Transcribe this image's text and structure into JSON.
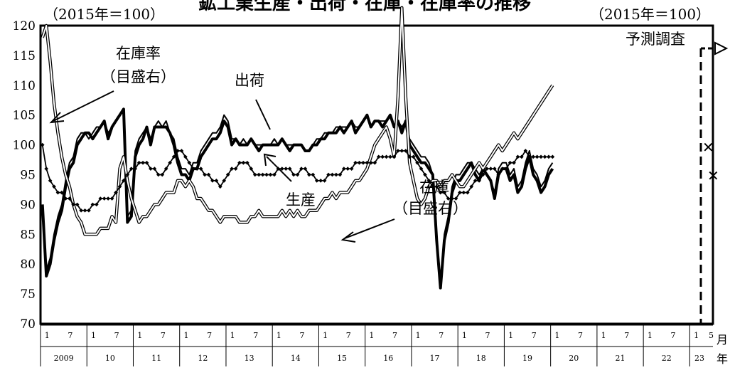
{
  "title": "鉱工業生産・出荷・在庫・在庫率の推移",
  "chart_data": {
    "type": "line",
    "left_unit": "（2015年＝100）",
    "right_unit": "（2015年＝100）",
    "x_unit_month": "月",
    "x_unit_year": "年",
    "ylim_left": [
      70,
      120
    ],
    "yticks_left": [
      "120",
      "115",
      "110",
      "105",
      "100",
      "95",
      "90",
      "85",
      "80",
      "75",
      "70"
    ],
    "ylim_right": [
      80,
      130
    ],
    "start": "2009-01",
    "end": "2023-05",
    "years": [
      "2009",
      "10",
      "11",
      "12",
      "13",
      "14",
      "15",
      "16",
      "17",
      "18",
      "19",
      "20",
      "21",
      "22",
      "23"
    ],
    "month_ticks": [
      "1",
      "7"
    ],
    "grid": false,
    "forecast_label": "予測調査",
    "annotations": {
      "inventory_ratio": [
        "在庫率",
        "（目盛右）"
      ],
      "shipments": "出荷",
      "production": "生産",
      "inventory": [
        "在庫",
        "（目盛右）"
      ]
    },
    "series": [
      {
        "name": "生産",
        "axis": "left",
        "values": [
          90,
          78,
          80,
          84,
          87,
          89,
          93,
          96,
          97,
          100,
          101,
          102,
          102,
          101,
          102,
          103,
          104,
          101,
          103,
          104,
          105,
          106,
          87,
          88,
          98,
          100,
          101,
          103,
          100,
          103,
          103,
          103,
          103,
          102,
          100,
          97,
          95,
          95,
          94,
          96,
          96,
          98,
          99,
          100,
          101,
          101,
          102,
          104,
          103,
          100,
          101,
          100,
          100,
          100,
          101,
          100,
          99,
          100,
          100,
          100,
          100,
          100,
          101,
          100,
          99,
          100,
          100,
          100,
          99,
          99,
          100,
          100,
          101,
          101,
          102,
          102,
          102,
          103,
          102,
          103,
          104,
          102,
          103,
          104,
          105,
          103,
          104,
          104,
          103,
          104,
          105,
          103,
          104,
          102,
          104,
          100,
          99,
          98,
          97,
          97,
          96,
          95,
          84,
          76,
          84,
          87,
          92,
          94,
          94,
          95,
          96,
          97,
          95,
          94,
          96,
          95,
          94,
          91,
          95,
          96,
          96,
          94,
          95,
          92,
          93,
          96,
          98,
          95,
          94,
          92,
          93,
          95,
          96
        ],
        "color": "#000"
      },
      {
        "name": "出荷",
        "axis": "left",
        "values": [
          89,
          79,
          81,
          85,
          88,
          90,
          94,
          97,
          98,
          101,
          102,
          102,
          101,
          102,
          103,
          103,
          104,
          102,
          103,
          104,
          105,
          106,
          88,
          89,
          99,
          101,
          102,
          103,
          101,
          103,
          104,
          103,
          104,
          102,
          101,
          98,
          96,
          96,
          95,
          97,
          97,
          99,
          100,
          101,
          102,
          102,
          103,
          105,
          104,
          101,
          101,
          100,
          101,
          100,
          101,
          100,
          100,
          100,
          100,
          100,
          101,
          100,
          101,
          100,
          100,
          100,
          100,
          100,
          99,
          99,
          100,
          101,
          101,
          102,
          102,
          102,
          103,
          103,
          103,
          103,
          104,
          103,
          103,
          104,
          105,
          103,
          104,
          104,
          104,
          104,
          105,
          103,
          104,
          103,
          104,
          101,
          100,
          99,
          98,
          98,
          97,
          95,
          85,
          77,
          85,
          88,
          93,
          95,
          95,
          96,
          97,
          97,
          96,
          95,
          96,
          95,
          94,
          92,
          96,
          97,
          97,
          95,
          96,
          93,
          94,
          97,
          99,
          96,
          95,
          93,
          94,
          96,
          97
        ],
        "color": "#000"
      },
      {
        "name": "在庫率",
        "axis": "right",
        "values": [
          128,
          130,
          124,
          117,
          112,
          108,
          105,
          103,
          100,
          98,
          97,
          95,
          95,
          95,
          95,
          96,
          96,
          96,
          98,
          97,
          106,
          108,
          104,
          101,
          99,
          97,
          98,
          98,
          99,
          100,
          100,
          101,
          102,
          102,
          102,
          104,
          104,
          103,
          104,
          103,
          101,
          101,
          100,
          99,
          99,
          98,
          97,
          98,
          98,
          98,
          98,
          97,
          97,
          97,
          98,
          98,
          99,
          98,
          98,
          98,
          98,
          98,
          99,
          98,
          99,
          98,
          99,
          98,
          98,
          99,
          99,
          99,
          100,
          101,
          101,
          102,
          101,
          102,
          102,
          102,
          103,
          104,
          104,
          105,
          106,
          108,
          110,
          111,
          112,
          113,
          111,
          108,
          118,
          133,
          118,
          107,
          104,
          101,
          100,
          101,
          103,
          104,
          104,
          103,
          104,
          104,
          105,
          104,
          103,
          103,
          104,
          105,
          106,
          107,
          106,
          107,
          108,
          109,
          110,
          109,
          110,
          111,
          112,
          111,
          112,
          113,
          114,
          115,
          116,
          117,
          118,
          119,
          120
        ],
        "color": "#888"
      },
      {
        "name": "在庫",
        "axis": "right",
        "values": [
          110,
          106,
          104,
          103,
          102,
          102,
          101,
          101,
          100,
          100,
          99,
          99,
          99,
          100,
          100,
          101,
          101,
          101,
          101,
          102,
          103,
          104,
          105,
          106,
          106,
          107,
          107,
          107,
          106,
          106,
          105,
          105,
          106,
          107,
          108,
          109,
          109,
          108,
          107,
          106,
          106,
          106,
          105,
          105,
          104,
          104,
          103,
          104,
          105,
          106,
          106,
          107,
          107,
          107,
          106,
          105,
          105,
          105,
          105,
          105,
          105,
          106,
          106,
          106,
          106,
          105,
          105,
          106,
          106,
          105,
          105,
          104,
          104,
          104,
          105,
          105,
          105,
          105,
          106,
          106,
          106,
          107,
          107,
          107,
          107,
          107,
          107,
          108,
          108,
          108,
          108,
          108,
          109,
          109,
          109,
          108,
          108,
          107,
          106,
          105,
          104,
          103,
          103,
          102,
          102,
          101,
          101,
          101,
          102,
          102,
          102,
          103,
          104,
          104,
          105,
          106,
          106,
          106,
          105,
          106,
          106,
          107,
          107,
          108,
          108,
          109,
          108,
          108,
          108,
          108,
          108,
          108,
          108
        ],
        "color": "#000"
      }
    ]
  }
}
